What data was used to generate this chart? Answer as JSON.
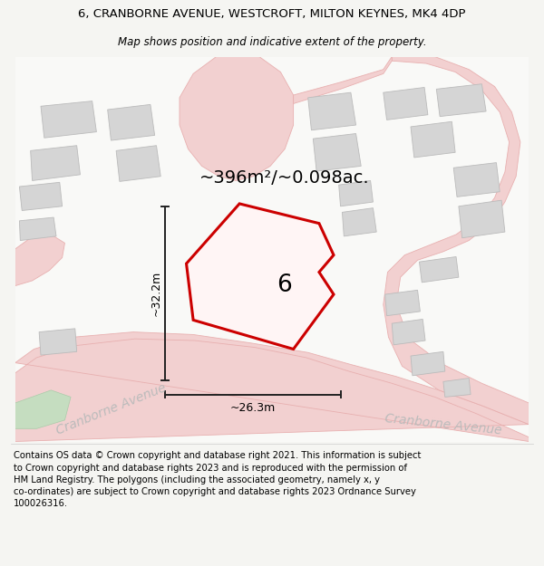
{
  "title_line1": "6, CRANBORNE AVENUE, WESTCROFT, MILTON KEYNES, MK4 4DP",
  "title_line2": "Map shows position and indicative extent of the property.",
  "area_text": "~396m²/~0.098ac.",
  "width_label": "~26.3m",
  "height_label": "~32.2m",
  "plot_number": "6",
  "street_label1": "Cranborne Avenue",
  "street_label2": "Cranborne Avenue",
  "footer_text": "Contains OS data © Crown copyright and database right 2021. This information is subject to Crown copyright and database rights 2023 and is reproduced with the permission of HM Land Registry. The polygons (including the associated geometry, namely x, y co-ordinates) are subject to Crown copyright and database rights 2023 Ordnance Survey 100026316.",
  "bg_color": "#f5f5f2",
  "map_bg": "#f9f9f7",
  "road_fill": "#f2d0d0",
  "road_edge": "#e8b0b0",
  "bldg_fill": "#d5d5d5",
  "bldg_edge": "#bbbbbb",
  "highlight_color": "#cc0000",
  "dim_color": "#222222",
  "road_label_color": "#bbbbbb",
  "footer_fontsize": 7.2,
  "title_fontsize": 9.5,
  "subtitle_fontsize": 8.5
}
